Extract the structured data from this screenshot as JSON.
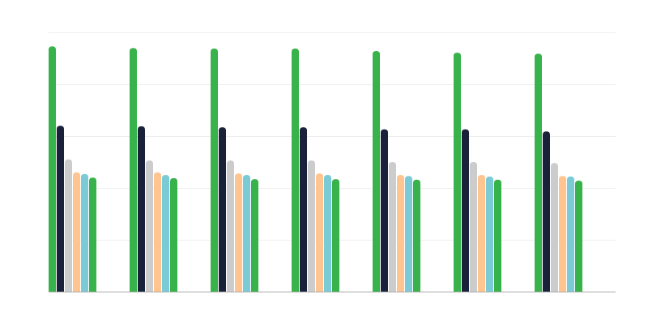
{
  "chart_data": {
    "type": "bar",
    "title": "",
    "xlabel": "",
    "ylabel": "",
    "ylim": [
      0,
      5
    ],
    "grid": true,
    "gridlines": [
      0,
      1,
      2,
      3,
      4,
      5
    ],
    "categories": [
      "",
      "",
      "",
      "",
      "",
      "",
      ""
    ],
    "colors": [
      "#38b24a",
      "#19223a",
      "#cccccc",
      "#ffc490",
      "#7bcbd6",
      "#38b24a"
    ],
    "series": [
      {
        "values": [
          4.73,
          4.7,
          4.69,
          4.69,
          4.64,
          4.61,
          4.59
        ]
      },
      {
        "values": [
          3.2,
          3.19,
          3.17,
          3.17,
          3.13,
          3.13,
          3.09
        ]
      },
      {
        "values": [
          2.55,
          2.53,
          2.53,
          2.53,
          2.5,
          2.5,
          2.48
        ]
      },
      {
        "values": [
          2.3,
          2.3,
          2.28,
          2.28,
          2.25,
          2.25,
          2.23
        ]
      },
      {
        "values": [
          2.27,
          2.25,
          2.25,
          2.25,
          2.23,
          2.22,
          2.22
        ]
      },
      {
        "values": [
          2.2,
          2.19,
          2.17,
          2.17,
          2.16,
          2.16,
          2.14
        ]
      }
    ]
  }
}
